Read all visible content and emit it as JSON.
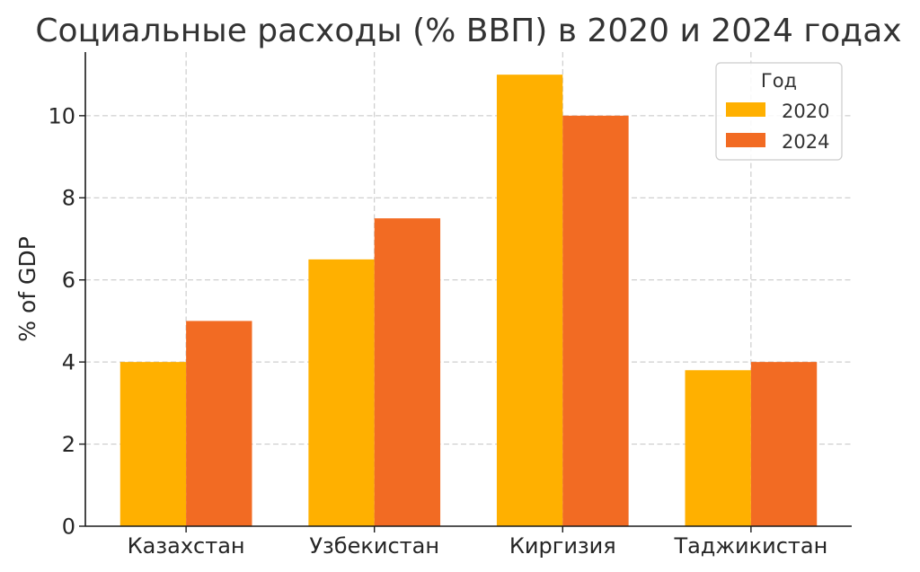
{
  "chart_data": {
    "type": "bar",
    "title": "Социальные расходы (% ВВП) в 2020 и 2024 годах",
    "ylabel": "% of GDP",
    "categories": [
      "Казахстан",
      "Узбекистан",
      "Киргизия",
      "Таджикистан"
    ],
    "series": [
      {
        "name": "2020",
        "color": "#FFB000",
        "values": [
          4,
          6.5,
          11,
          3.8
        ]
      },
      {
        "name": "2024",
        "color": "#F26B23",
        "values": [
          5,
          7.5,
          10,
          4
        ]
      }
    ],
    "ylim": [
      0,
      11.55
    ],
    "yticks": [
      0,
      2,
      4,
      6,
      8,
      10
    ],
    "grid": true,
    "legend": {
      "title": "Год",
      "position": "top-right"
    }
  }
}
